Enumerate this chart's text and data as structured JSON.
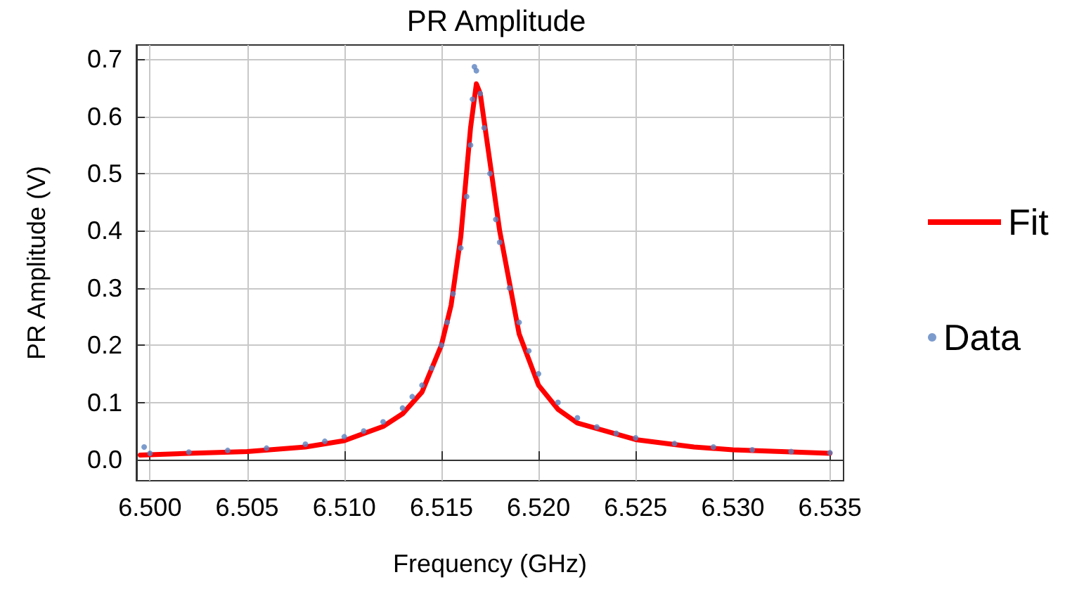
{
  "chart_data": {
    "type": "scatter",
    "title": "PR Amplitude",
    "xlabel": "Frequency (GHz)",
    "ylabel": "PR Amplitude (V)",
    "xlim": [
      6.4993,
      6.5357
    ],
    "ylim": [
      -0.037,
      0.725
    ],
    "xticks": [
      {
        "value": 6.5,
        "label": "6.500"
      },
      {
        "value": 6.505,
        "label": "6.505"
      },
      {
        "value": 6.51,
        "label": "6.510"
      },
      {
        "value": 6.515,
        "label": "6.515"
      },
      {
        "value": 6.52,
        "label": "6.520"
      },
      {
        "value": 6.525,
        "label": "6.525"
      },
      {
        "value": 6.53,
        "label": "6.530"
      },
      {
        "value": 6.535,
        "label": "6.535"
      }
    ],
    "yticks": [
      {
        "value": 0,
        "label": "0.0"
      },
      {
        "value": 0.1,
        "label": "0.1"
      },
      {
        "value": 0.2,
        "label": "0.2"
      },
      {
        "value": 0.3,
        "label": "0.3"
      },
      {
        "value": 0.4,
        "label": "0.4"
      },
      {
        "value": 0.5,
        "label": "0.5"
      },
      {
        "value": 0.6,
        "label": "0.6"
      },
      {
        "value": 0.7,
        "label": "0.7"
      }
    ],
    "grid": true,
    "legend": "right",
    "series": [
      {
        "name": "Fit",
        "type": "line",
        "color": "#ff0000",
        "marker": "none",
        "line_style": "solid",
        "x": [
          6.4995,
          6.502,
          6.505,
          6.508,
          6.51,
          6.512,
          6.513,
          6.514,
          6.515,
          6.5155,
          6.516,
          6.5165,
          6.5168,
          6.517,
          6.5175,
          6.518,
          6.519,
          6.52,
          6.521,
          6.522,
          6.525,
          6.528,
          6.53,
          6.535
        ],
        "values": [
          0.008,
          0.011,
          0.014,
          0.022,
          0.033,
          0.058,
          0.08,
          0.118,
          0.2,
          0.27,
          0.39,
          0.58,
          0.657,
          0.64,
          0.52,
          0.4,
          0.22,
          0.13,
          0.088,
          0.064,
          0.035,
          0.022,
          0.017,
          0.011
        ]
      },
      {
        "name": "Data",
        "color": "#5b82c0",
        "marker": "circle",
        "x": [
          6.4997,
          6.5,
          6.502,
          6.504,
          6.506,
          6.508,
          6.509,
          6.51,
          6.511,
          6.512,
          6.513,
          6.5135,
          6.514,
          6.5145,
          6.515,
          6.5153,
          6.5156,
          6.516,
          6.5163,
          6.5165,
          6.5166,
          6.5167,
          6.5168,
          6.517,
          6.5172,
          6.5175,
          6.5178,
          6.518,
          6.5185,
          6.519,
          6.5195,
          6.52,
          6.521,
          6.522,
          6.523,
          6.524,
          6.525,
          6.527,
          6.529,
          6.531,
          6.533,
          6.535
        ],
        "values": [
          0.022,
          0.011,
          0.013,
          0.016,
          0.02,
          0.027,
          0.032,
          0.04,
          0.05,
          0.066,
          0.09,
          0.11,
          0.13,
          0.16,
          0.2,
          0.24,
          0.29,
          0.37,
          0.46,
          0.55,
          0.63,
          0.687,
          0.68,
          0.64,
          0.58,
          0.5,
          0.42,
          0.38,
          0.3,
          0.24,
          0.19,
          0.15,
          0.1,
          0.073,
          0.057,
          0.046,
          0.038,
          0.028,
          0.022,
          0.017,
          0.014,
          0.012
        ]
      }
    ]
  }
}
